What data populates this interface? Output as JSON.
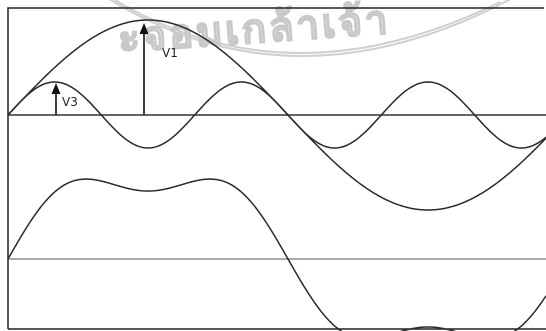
{
  "labels": {
    "v1": "V1",
    "v3": "V3"
  },
  "watermark": {
    "text": "ะจอมเกล้าเจ้า"
  },
  "colors": {
    "ink": "#2a2a2a",
    "watermark": "#c9c9c9",
    "background": "#ffffff"
  }
}
